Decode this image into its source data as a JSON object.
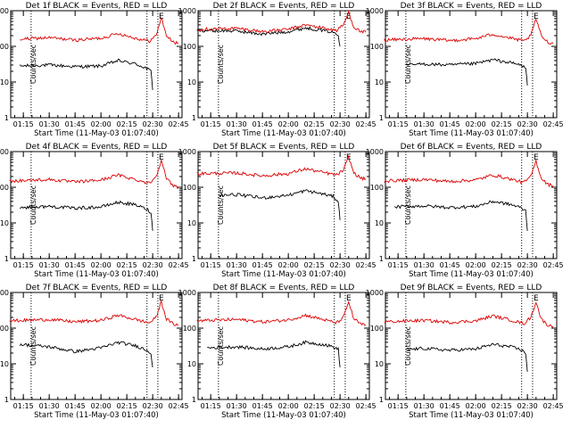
{
  "colors": {
    "events": "#000000",
    "lld": "#dd0000",
    "axis": "#000000"
  },
  "chart_data": [
    {
      "type": "line",
      "title": "Det 1f BLACK = Events, RED = LLD",
      "xlabel": "Start Time (11-May-03 01:07:40)",
      "ylabel": "Counts/sec",
      "ylog": true,
      "ylim": [
        1,
        1000
      ],
      "xlim": [
        "01:07:40",
        "02:47"
      ],
      "xticklabels": [
        "01:15",
        "01:30",
        "01:45",
        "02:00",
        "02:15",
        "02:30",
        "02:45"
      ],
      "yticklabels": [
        "1",
        "10",
        "100",
        "1000"
      ],
      "markers": [
        {
          "time": "01:19:30",
          "label": ""
        },
        {
          "time": "02:26:40",
          "label": ""
        },
        {
          "time": "02:33",
          "label": "E"
        }
      ],
      "series": [
        {
          "name": "Events",
          "x": [
            "01:13",
            "01:30",
            "01:45",
            "02:00",
            "02:10",
            "02:20",
            "02:26",
            "02:29",
            "02:30"
          ],
          "y": [
            28,
            30,
            27,
            28,
            40,
            32,
            25,
            20,
            6
          ]
        },
        {
          "name": "LLD",
          "x": [
            "01:13",
            "01:30",
            "01:45",
            "02:00",
            "02:10",
            "02:20",
            "02:28",
            "02:32",
            "02:35",
            "02:38",
            "02:42",
            "02:45"
          ],
          "y": [
            160,
            175,
            150,
            170,
            230,
            170,
            140,
            200,
            650,
            200,
            130,
            120
          ]
        }
      ]
    },
    {
      "type": "line",
      "title": "Det 2f BLACK = Events, RED = LLD",
      "xlabel": "Start Time (11-May-03 01:07:40)",
      "ylabel": "Counts/sec",
      "ylog": true,
      "ylim": [
        1,
        1000
      ],
      "xlim": [
        "01:07:40",
        "02:47"
      ],
      "xticklabels": [
        "01:15",
        "01:30",
        "01:45",
        "02:00",
        "02:15",
        "02:30",
        "02:45"
      ],
      "yticklabels": [
        "1",
        "10",
        "100",
        "1000"
      ],
      "markers": [
        {
          "time": "01:19:30",
          "label": ""
        },
        {
          "time": "02:26:40",
          "label": ""
        },
        {
          "time": "02:33",
          "label": "E"
        }
      ],
      "series": [
        {
          "name": "Events",
          "x": [
            "01:07",
            "01:30",
            "01:45",
            "02:00",
            "02:10",
            "02:20",
            "02:26",
            "02:29",
            "02:30"
          ],
          "y": [
            280,
            270,
            220,
            260,
            330,
            280,
            250,
            200,
            100
          ]
        },
        {
          "name": "LLD",
          "x": [
            "01:07",
            "01:30",
            "01:45",
            "02:00",
            "02:10",
            "02:20",
            "02:28",
            "02:32",
            "02:35",
            "02:38",
            "02:42",
            "02:45"
          ],
          "y": [
            300,
            320,
            260,
            300,
            400,
            330,
            280,
            400,
            900,
            350,
            260,
            250
          ]
        }
      ]
    },
    {
      "type": "line",
      "title": "Det 3f BLACK = Events, RED = LLD",
      "xlabel": "Start Time (11-May-03 01:07:40)",
      "ylabel": "Counts/sec",
      "ylog": true,
      "ylim": [
        1,
        1000
      ],
      "xlim": [
        "01:07:40",
        "02:47"
      ],
      "xticklabels": [
        "01:15",
        "01:30",
        "01:45",
        "02:00",
        "02:15",
        "02:30",
        "02:45"
      ],
      "yticklabels": [
        "1",
        "10",
        "100",
        "1000"
      ],
      "markers": [
        {
          "time": "01:19:30",
          "label": ""
        },
        {
          "time": "02:26:40",
          "label": ""
        },
        {
          "time": "02:33",
          "label": "E"
        }
      ],
      "series": [
        {
          "name": "Events",
          "x": [
            "01:20",
            "01:30",
            "01:45",
            "02:00",
            "02:10",
            "02:20",
            "02:26",
            "02:29",
            "02:30"
          ],
          "y": [
            30,
            32,
            30,
            33,
            42,
            35,
            30,
            25,
            8
          ]
        },
        {
          "name": "LLD",
          "x": [
            "01:07",
            "01:30",
            "01:45",
            "02:00",
            "02:10",
            "02:20",
            "02:28",
            "02:32",
            "02:35",
            "02:38",
            "02:42",
            "02:45"
          ],
          "y": [
            150,
            165,
            145,
            165,
            220,
            170,
            140,
            200,
            600,
            200,
            130,
            120
          ]
        }
      ]
    },
    {
      "type": "line",
      "title": "Det 4f BLACK = Events, RED = LLD",
      "xlabel": "Start Time (11-May-03 01:07:40)",
      "ylabel": "Counts/sec",
      "ylog": true,
      "ylim": [
        1,
        1000
      ],
      "xlim": [
        "01:07:40",
        "02:47"
      ],
      "xticklabels": [
        "01:15",
        "01:30",
        "01:45",
        "02:00",
        "02:15",
        "02:30",
        "02:45"
      ],
      "yticklabels": [
        "1",
        "10",
        "100",
        "1000"
      ],
      "markers": [
        {
          "time": "01:19:30",
          "label": ""
        },
        {
          "time": "02:26:40",
          "label": ""
        },
        {
          "time": "02:33",
          "label": "E"
        }
      ],
      "series": [
        {
          "name": "Events",
          "x": [
            "01:13",
            "01:30",
            "01:45",
            "02:00",
            "02:10",
            "02:20",
            "02:26",
            "02:29",
            "02:30"
          ],
          "y": [
            27,
            29,
            26,
            28,
            38,
            32,
            25,
            20,
            6
          ]
        },
        {
          "name": "LLD",
          "x": [
            "01:07",
            "01:30",
            "01:45",
            "02:00",
            "02:10",
            "02:20",
            "02:28",
            "02:32",
            "02:35",
            "02:38",
            "02:42",
            "02:45"
          ],
          "y": [
            150,
            165,
            140,
            160,
            220,
            165,
            130,
            200,
            600,
            170,
            110,
            100
          ]
        }
      ]
    },
    {
      "type": "line",
      "title": "Det 5f BLACK = Events, RED = LLD",
      "xlabel": "Start Time (11-May-03 01:07:40)",
      "ylabel": "Counts/sec",
      "ylog": true,
      "ylim": [
        1,
        1000
      ],
      "xlim": [
        "01:07:40",
        "02:47"
      ],
      "xticklabels": [
        "01:15",
        "01:30",
        "01:45",
        "02:00",
        "02:15",
        "02:30",
        "02:45"
      ],
      "yticklabels": [
        "1",
        "10",
        "100",
        "1000"
      ],
      "markers": [
        {
          "time": "01:19:30",
          "label": ""
        },
        {
          "time": "02:26:40",
          "label": ""
        },
        {
          "time": "02:33",
          "label": "E"
        }
      ],
      "series": [
        {
          "name": "Events",
          "x": [
            "01:20",
            "01:30",
            "01:45",
            "02:00",
            "02:10",
            "02:20",
            "02:26",
            "02:29",
            "02:30"
          ],
          "y": [
            60,
            62,
            50,
            60,
            80,
            65,
            55,
            40,
            12
          ]
        },
        {
          "name": "LLD",
          "x": [
            "01:07",
            "01:30",
            "01:45",
            "02:00",
            "02:10",
            "02:20",
            "02:28",
            "02:32",
            "02:35",
            "02:38",
            "02:42",
            "02:45"
          ],
          "y": [
            240,
            250,
            210,
            240,
            330,
            260,
            220,
            300,
            700,
            250,
            180,
            170
          ]
        }
      ]
    },
    {
      "type": "line",
      "title": "Det 6f BLACK = Events, RED = LLD",
      "xlabel": "Start Time (11-May-03 01:07:40)",
      "ylabel": "Counts/sec",
      "ylog": true,
      "ylim": [
        1,
        1000
      ],
      "xlim": [
        "01:07:40",
        "02:47"
      ],
      "xticklabels": [
        "01:15",
        "01:30",
        "01:45",
        "02:00",
        "02:15",
        "02:30",
        "02:45"
      ],
      "yticklabels": [
        "1",
        "10",
        "100",
        "1000"
      ],
      "markers": [
        {
          "time": "01:19:30",
          "label": ""
        },
        {
          "time": "02:26:40",
          "label": ""
        },
        {
          "time": "02:33",
          "label": "E"
        }
      ],
      "series": [
        {
          "name": "Events",
          "x": [
            "01:13",
            "01:30",
            "01:45",
            "02:00",
            "02:10",
            "02:20",
            "02:26",
            "02:29",
            "02:30"
          ],
          "y": [
            28,
            30,
            27,
            29,
            40,
            33,
            27,
            22,
            6
          ]
        },
        {
          "name": "LLD",
          "x": [
            "01:07",
            "01:30",
            "01:45",
            "02:00",
            "02:10",
            "02:20",
            "02:28",
            "02:32",
            "02:35",
            "02:38",
            "02:42",
            "02:45"
          ],
          "y": [
            150,
            165,
            145,
            160,
            220,
            170,
            135,
            200,
            550,
            180,
            120,
            110
          ]
        }
      ]
    },
    {
      "type": "line",
      "title": "Det 7f BLACK = Events, RED = LLD",
      "xlabel": "Start Time (11-May-03 01:07:40)",
      "ylabel": "Counts/sec",
      "ylog": true,
      "ylim": [
        1,
        1000
      ],
      "xlim": [
        "01:07:40",
        "02:47"
      ],
      "xticklabels": [
        "01:15",
        "01:30",
        "01:45",
        "02:00",
        "02:15",
        "02:30",
        "02:45"
      ],
      "yticklabels": [
        "1",
        "10",
        "100",
        "1000"
      ],
      "markers": [
        {
          "time": "01:19:30",
          "label": ""
        },
        {
          "time": "02:26:40",
          "label": ""
        },
        {
          "time": "02:33",
          "label": "E"
        }
      ],
      "series": [
        {
          "name": "Events",
          "x": [
            "01:13",
            "01:30",
            "01:45",
            "02:00",
            "02:10",
            "02:20",
            "02:26",
            "02:29",
            "02:30"
          ],
          "y": [
            35,
            30,
            22,
            28,
            40,
            32,
            25,
            20,
            8
          ]
        },
        {
          "name": "LLD",
          "x": [
            "01:07",
            "01:30",
            "01:45",
            "02:00",
            "02:10",
            "02:20",
            "02:28",
            "02:32",
            "02:35",
            "02:38",
            "02:42",
            "02:45"
          ],
          "y": [
            160,
            175,
            150,
            165,
            230,
            175,
            140,
            200,
            550,
            180,
            130,
            120
          ]
        }
      ]
    },
    {
      "type": "line",
      "title": "Det 8f BLACK = Events, RED = LLD",
      "xlabel": "Start Time (11-May-03 01:07:40)",
      "ylabel": "Counts/sec",
      "ylog": true,
      "ylim": [
        1,
        1000
      ],
      "xlim": [
        "01:07:40",
        "02:47"
      ],
      "xticklabels": [
        "01:15",
        "01:30",
        "01:45",
        "02:00",
        "02:15",
        "02:30",
        "02:45"
      ],
      "yticklabels": [
        "1",
        "10",
        "100",
        "1000"
      ],
      "markers": [
        {
          "time": "01:19:30",
          "label": ""
        },
        {
          "time": "02:26:40",
          "label": ""
        },
        {
          "time": "02:33",
          "label": "E"
        }
      ],
      "series": [
        {
          "name": "Events",
          "x": [
            "01:13",
            "01:30",
            "01:45",
            "02:00",
            "02:10",
            "02:20",
            "02:26",
            "02:29",
            "02:30"
          ],
          "y": [
            28,
            30,
            26,
            30,
            40,
            35,
            30,
            25,
            8
          ]
        },
        {
          "name": "LLD",
          "x": [
            "01:07",
            "01:30",
            "01:45",
            "02:00",
            "02:10",
            "02:20",
            "02:28",
            "02:32",
            "02:35",
            "02:38",
            "02:42",
            "02:45"
          ],
          "y": [
            160,
            175,
            150,
            170,
            230,
            175,
            140,
            200,
            550,
            180,
            130,
            120
          ]
        }
      ]
    },
    {
      "type": "line",
      "title": "Det 9f BLACK = Events, RED = LLD",
      "xlabel": "Start Time (11-May-03 01:07:40)",
      "ylabel": "Counts/sec",
      "ylog": true,
      "ylim": [
        1,
        1000
      ],
      "xlim": [
        "01:07:40",
        "02:47"
      ],
      "xticklabels": [
        "01:15",
        "01:30",
        "01:45",
        "02:00",
        "02:15",
        "02:30",
        "02:45"
      ],
      "yticklabels": [
        "1",
        "10",
        "100",
        "1000"
      ],
      "markers": [
        {
          "time": "01:19:30",
          "label": ""
        },
        {
          "time": "02:26:40",
          "label": ""
        },
        {
          "time": "02:33",
          "label": "E"
        }
      ],
      "series": [
        {
          "name": "Events",
          "x": [
            "01:20",
            "01:30",
            "01:45",
            "02:00",
            "02:10",
            "02:20",
            "02:26",
            "02:29",
            "02:30"
          ],
          "y": [
            25,
            27,
            24,
            26,
            35,
            30,
            25,
            20,
            6
          ]
        },
        {
          "name": "LLD",
          "x": [
            "01:07",
            "01:30",
            "01:45",
            "02:00",
            "02:10",
            "02:20",
            "02:28",
            "02:32",
            "02:35",
            "02:38",
            "02:42",
            "02:45"
          ],
          "y": [
            150,
            165,
            145,
            160,
            220,
            170,
            135,
            200,
            550,
            180,
            120,
            110
          ]
        }
      ]
    }
  ]
}
